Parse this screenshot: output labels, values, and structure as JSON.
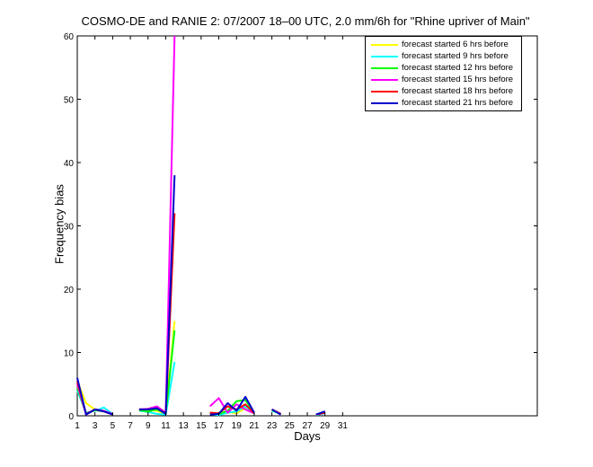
{
  "chart_data": {
    "type": "line",
    "title": "COSMO-DE and RANIE 2: 07/2007 18–00 UTC, 2.0 mm/6h for \"Rhine upriver of Main\"",
    "xlabel": "Days",
    "ylabel": "Frequency bias",
    "xlim": [
      1,
      53
    ],
    "ylim": [
      0,
      60
    ],
    "xticks": [
      1,
      3,
      5,
      7,
      9,
      11,
      13,
      15,
      17,
      19,
      21,
      23,
      25,
      27,
      29,
      31
    ],
    "yticks": [
      0,
      10,
      20,
      30,
      40,
      50,
      60
    ],
    "grid": false,
    "legend_position": "top-right",
    "series": [
      {
        "name": "forecast started 6 hrs before",
        "color": "#ffff00",
        "segments": [
          [
            [
              1,
              5.5
            ],
            [
              2,
              2.0
            ],
            [
              3,
              1.0
            ],
            [
              4,
              0.8
            ],
            [
              5,
              0.3
            ]
          ],
          [
            [
              8,
              0.8
            ],
            [
              9,
              0.9
            ],
            [
              10,
              0.8
            ],
            [
              11,
              0.3
            ],
            [
              12,
              15.0
            ]
          ],
          [
            [
              16,
              0.5
            ],
            [
              17,
              0.2
            ],
            [
              18,
              0.6
            ],
            [
              19,
              0.4
            ],
            [
              20,
              1.2
            ],
            [
              21,
              0.4
            ]
          ],
          [
            [
              23,
              1.0
            ],
            [
              24,
              0.3
            ]
          ],
          [
            [
              28,
              0.2
            ],
            [
              29,
              0.5
            ]
          ]
        ]
      },
      {
        "name": "forecast started 9 hrs before",
        "color": "#00ffff",
        "segments": [
          [
            [
              1,
              4.0
            ],
            [
              2,
              0.5
            ],
            [
              3,
              0.8
            ],
            [
              4,
              1.3
            ],
            [
              5,
              0.3
            ]
          ],
          [
            [
              8,
              0.8
            ],
            [
              9,
              0.6
            ],
            [
              10,
              0.3
            ],
            [
              11,
              0.2
            ],
            [
              12,
              8.5
            ]
          ],
          [
            [
              16,
              0.3
            ],
            [
              17,
              0.1
            ],
            [
              18,
              0.5
            ],
            [
              19,
              0.7
            ],
            [
              20,
              1.5
            ],
            [
              21,
              0.3
            ]
          ],
          [
            [
              23,
              0.8
            ],
            [
              24,
              0.3
            ]
          ],
          [
            [
              28,
              0.1
            ],
            [
              29,
              0.4
            ]
          ]
        ]
      },
      {
        "name": "forecast started 12 hrs before",
        "color": "#00ff00",
        "segments": [
          [
            [
              1,
              4.5
            ],
            [
              2,
              0.3
            ],
            [
              3,
              0.9
            ],
            [
              4,
              0.7
            ],
            [
              5,
              0.2
            ]
          ],
          [
            [
              8,
              0.9
            ],
            [
              9,
              0.7
            ],
            [
              10,
              1.0
            ],
            [
              11,
              0.4
            ],
            [
              12,
              13.5
            ]
          ],
          [
            [
              16,
              0.5
            ],
            [
              17,
              0.3
            ],
            [
              18,
              0.8
            ],
            [
              19,
              2.3
            ],
            [
              20,
              2.5
            ],
            [
              21,
              0.5
            ]
          ],
          [
            [
              23,
              0.9
            ],
            [
              24,
              0.3
            ]
          ],
          [
            [
              28,
              0.2
            ],
            [
              29,
              0.6
            ]
          ]
        ]
      },
      {
        "name": "forecast started 15 hrs before",
        "color": "#ff00ff",
        "segments": [
          [
            [
              1,
              5.0
            ],
            [
              2,
              0.2
            ],
            [
              3,
              1.0
            ],
            [
              4,
              0.8
            ],
            [
              5,
              0.3
            ]
          ],
          [
            [
              8,
              1.0
            ],
            [
              9,
              1.1
            ],
            [
              10,
              1.5
            ],
            [
              11,
              0.5
            ],
            [
              12,
              60.0
            ]
          ],
          [
            [
              16,
              1.5
            ],
            [
              17,
              2.8
            ],
            [
              18,
              0.5
            ],
            [
              19,
              1.8
            ],
            [
              20,
              1.0
            ],
            [
              21,
              0.4
            ]
          ],
          [
            [
              23,
              1.0
            ],
            [
              24,
              0.3
            ]
          ],
          [
            [
              28,
              0.2
            ],
            [
              29,
              0.5
            ]
          ]
        ]
      },
      {
        "name": "forecast started 18 hrs before",
        "color": "#ff0000",
        "segments": [
          [
            [
              1,
              5.5
            ],
            [
              2,
              0.3
            ],
            [
              3,
              1.0
            ],
            [
              4,
              0.7
            ],
            [
              5,
              0.2
            ]
          ],
          [
            [
              8,
              1.0
            ],
            [
              9,
              1.0
            ],
            [
              10,
              1.2
            ],
            [
              11,
              0.4
            ],
            [
              12,
              32.0
            ]
          ],
          [
            [
              16,
              0.5
            ],
            [
              17,
              0.4
            ],
            [
              18,
              1.5
            ],
            [
              19,
              1.0
            ],
            [
              20,
              1.8
            ],
            [
              21,
              0.4
            ]
          ],
          [
            [
              23,
              1.0
            ],
            [
              24,
              0.3
            ]
          ],
          [
            [
              28,
              0.2
            ],
            [
              29,
              0.5
            ]
          ]
        ]
      },
      {
        "name": "forecast started 21 hrs before",
        "color": "#0000cc",
        "segments": [
          [
            [
              1,
              6.0
            ],
            [
              2,
              0.2
            ],
            [
              3,
              1.0
            ],
            [
              4,
              0.7
            ],
            [
              5,
              0.2
            ]
          ],
          [
            [
              8,
              1.0
            ],
            [
              9,
              1.0
            ],
            [
              10,
              1.2
            ],
            [
              11,
              0.3
            ],
            [
              12,
              38.0
            ]
          ],
          [
            [
              16,
              0.2
            ],
            [
              17,
              0.3
            ],
            [
              18,
              2.0
            ],
            [
              19,
              0.8
            ],
            [
              20,
              3.0
            ],
            [
              21,
              0.5
            ]
          ],
          [
            [
              23,
              1.0
            ],
            [
              24,
              0.2
            ]
          ],
          [
            [
              28,
              0.2
            ],
            [
              29,
              0.7
            ]
          ]
        ]
      }
    ]
  }
}
